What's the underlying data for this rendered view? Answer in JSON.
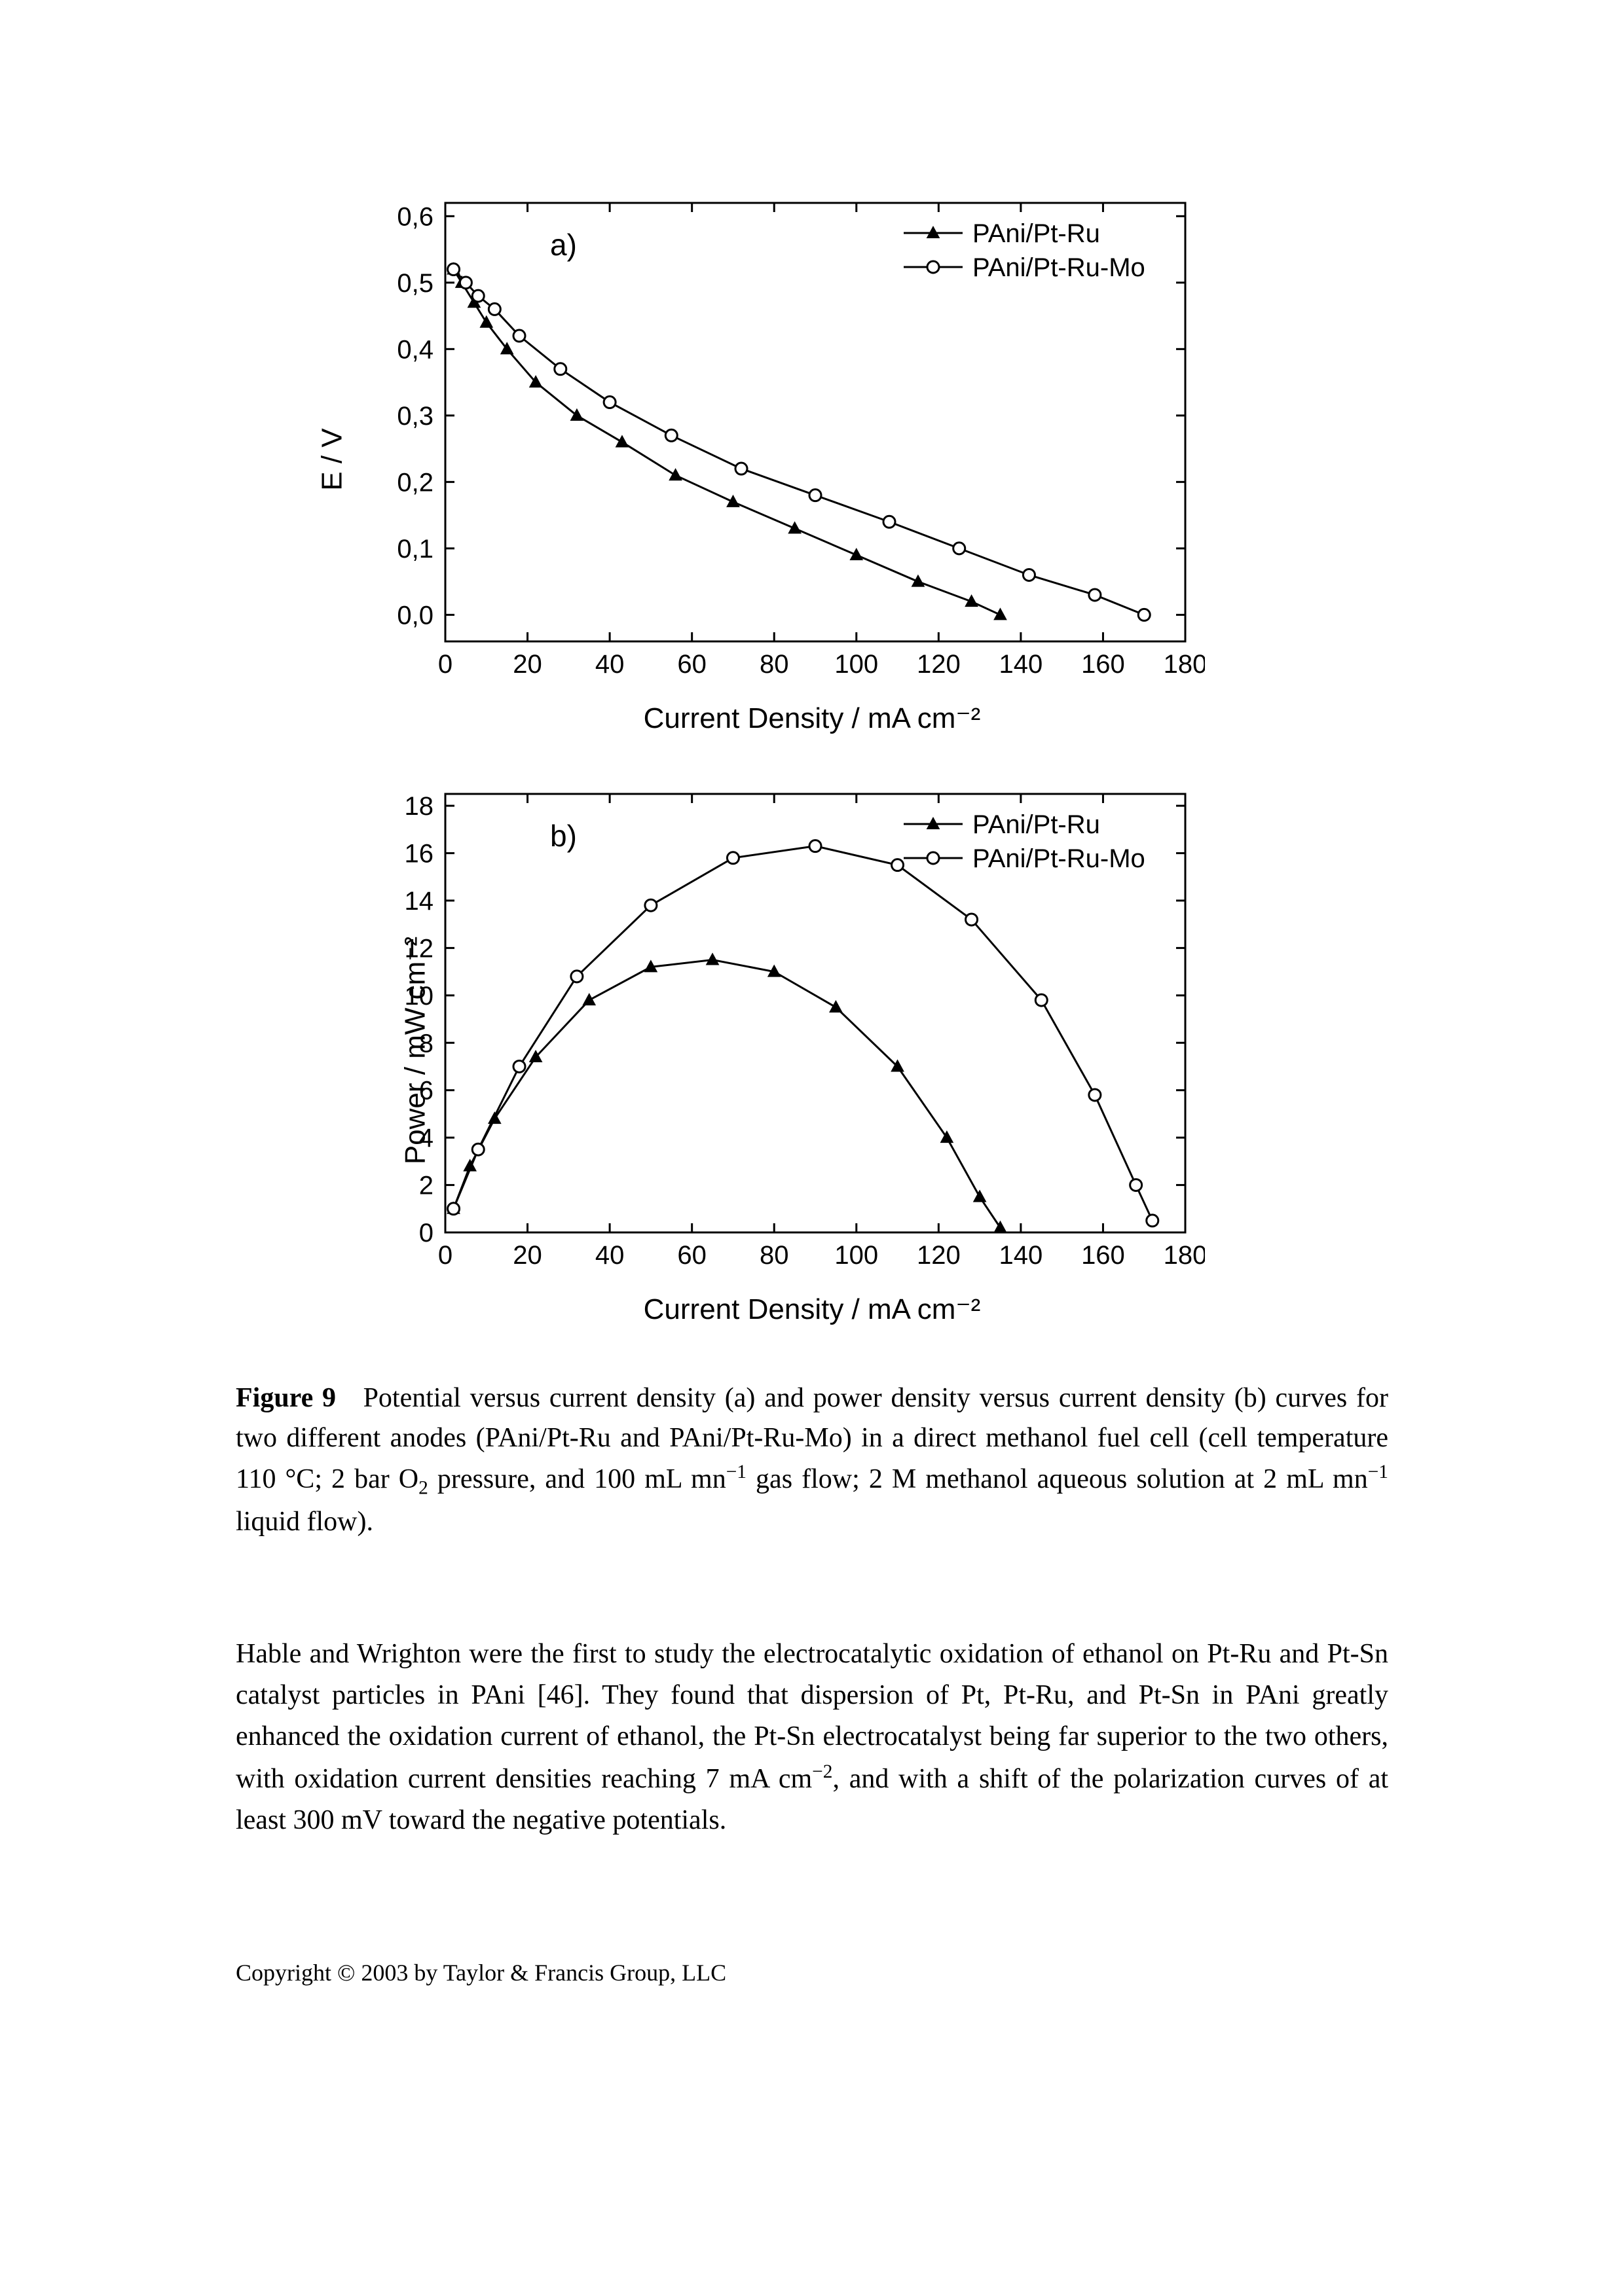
{
  "chart_a": {
    "type": "line",
    "panel_label": "a)",
    "xlabel": "Current Density / mA cm⁻²",
    "ylabel": "E / V",
    "xlim": [
      0,
      180
    ],
    "ylim": [
      -0.04,
      0.62
    ],
    "xticks": [
      0,
      20,
      40,
      60,
      80,
      100,
      120,
      140,
      160,
      180
    ],
    "yticks": [
      0.0,
      0.1,
      0.2,
      0.3,
      0.4,
      0.5,
      0.6
    ],
    "ytick_labels": [
      "0,0",
      "0,1",
      "0,2",
      "0,3",
      "0,4",
      "0,5",
      "0,6"
    ],
    "background_color": "#ffffff",
    "axis_color": "#000000",
    "tick_fontsize": 40,
    "label_fontsize": 44,
    "line_width": 3,
    "marker_size": 10,
    "series": [
      {
        "name": "PAni/Pt-Ru",
        "marker": "triangle-filled",
        "color": "#000000",
        "x": [
          2,
          4,
          7,
          10,
          15,
          22,
          32,
          43,
          56,
          70,
          85,
          100,
          115,
          128,
          135
        ],
        "y": [
          0.52,
          0.5,
          0.47,
          0.44,
          0.4,
          0.35,
          0.3,
          0.26,
          0.21,
          0.17,
          0.13,
          0.09,
          0.05,
          0.02,
          0.0
        ]
      },
      {
        "name": "PAni/Pt-Ru-Mo",
        "marker": "circle-open",
        "color": "#000000",
        "x": [
          2,
          5,
          8,
          12,
          18,
          28,
          40,
          55,
          72,
          90,
          108,
          125,
          142,
          158,
          170
        ],
        "y": [
          0.52,
          0.5,
          0.48,
          0.46,
          0.42,
          0.37,
          0.32,
          0.27,
          0.22,
          0.18,
          0.14,
          0.1,
          0.06,
          0.03,
          0.0
        ]
      }
    ],
    "legend": {
      "position": "top-right",
      "items": [
        "PAni/Pt-Ru",
        "PAni/Pt-Ru-Mo"
      ]
    }
  },
  "chart_b": {
    "type": "line",
    "panel_label": "b)",
    "xlabel": "Current Density / mA cm⁻²",
    "ylabel": "Power / mW cm⁻²",
    "xlim": [
      0,
      180
    ],
    "ylim": [
      0,
      18.5
    ],
    "xticks": [
      0,
      20,
      40,
      60,
      80,
      100,
      120,
      140,
      160,
      180
    ],
    "yticks": [
      0,
      2,
      4,
      6,
      8,
      10,
      12,
      14,
      16,
      18
    ],
    "background_color": "#ffffff",
    "axis_color": "#000000",
    "tick_fontsize": 40,
    "label_fontsize": 44,
    "line_width": 3,
    "marker_size": 10,
    "series": [
      {
        "name": "PAni/Pt-Ru",
        "marker": "triangle-filled",
        "color": "#000000",
        "x": [
          2,
          6,
          12,
          22,
          35,
          50,
          65,
          80,
          95,
          110,
          122,
          130,
          135
        ],
        "y": [
          1.0,
          2.8,
          4.8,
          7.4,
          9.8,
          11.2,
          11.5,
          11.0,
          9.5,
          7.0,
          4.0,
          1.5,
          0.2
        ]
      },
      {
        "name": "PAni/Pt-Ru-Mo",
        "marker": "circle-open",
        "color": "#000000",
        "x": [
          2,
          8,
          18,
          32,
          50,
          70,
          90,
          110,
          128,
          145,
          158,
          168,
          172
        ],
        "y": [
          1.0,
          3.5,
          7.0,
          10.8,
          13.8,
          15.8,
          16.3,
          15.5,
          13.2,
          9.8,
          5.8,
          2.0,
          0.5
        ]
      }
    ],
    "legend": {
      "position": "top-right",
      "items": [
        "PAni/Pt-Ru",
        "PAni/Pt-Ru-Mo"
      ]
    }
  },
  "caption": {
    "label": "Figure 9",
    "text_parts": [
      "Potential versus current density (a) and power density versus current density (b) curves for two different anodes (PAni/Pt-Ru and PAni/Pt-Ru-Mo) in a direct methanol fuel cell (cell temperature 110 °C; 2 bar O",
      " pressure, and 100 mL mn",
      " gas flow; 2 M methanol aqueous solution at 2 mL mn",
      " liquid flow)."
    ],
    "sub1": "2",
    "sup1": "−1",
    "sup2": "−1"
  },
  "body": {
    "text_parts": [
      "Hable and Wrighton were the first to study the electrocatalytic oxidation of ethanol on Pt-Ru and Pt-Sn catalyst particles in PAni [46]. They found that dispersion of Pt, Pt-Ru, and Pt-Sn in PAni greatly enhanced the oxidation current of ethanol, the Pt-Sn electrocatalyst being far superior to the two others, with oxidation current densities reaching 7 mA cm",
      ", and with a shift of the polarization curves of at least 300 mV toward the negative potentials."
    ],
    "sup1": "−2"
  },
  "copyright": "Copyright © 2003 by Taylor & Francis Group, LLC"
}
